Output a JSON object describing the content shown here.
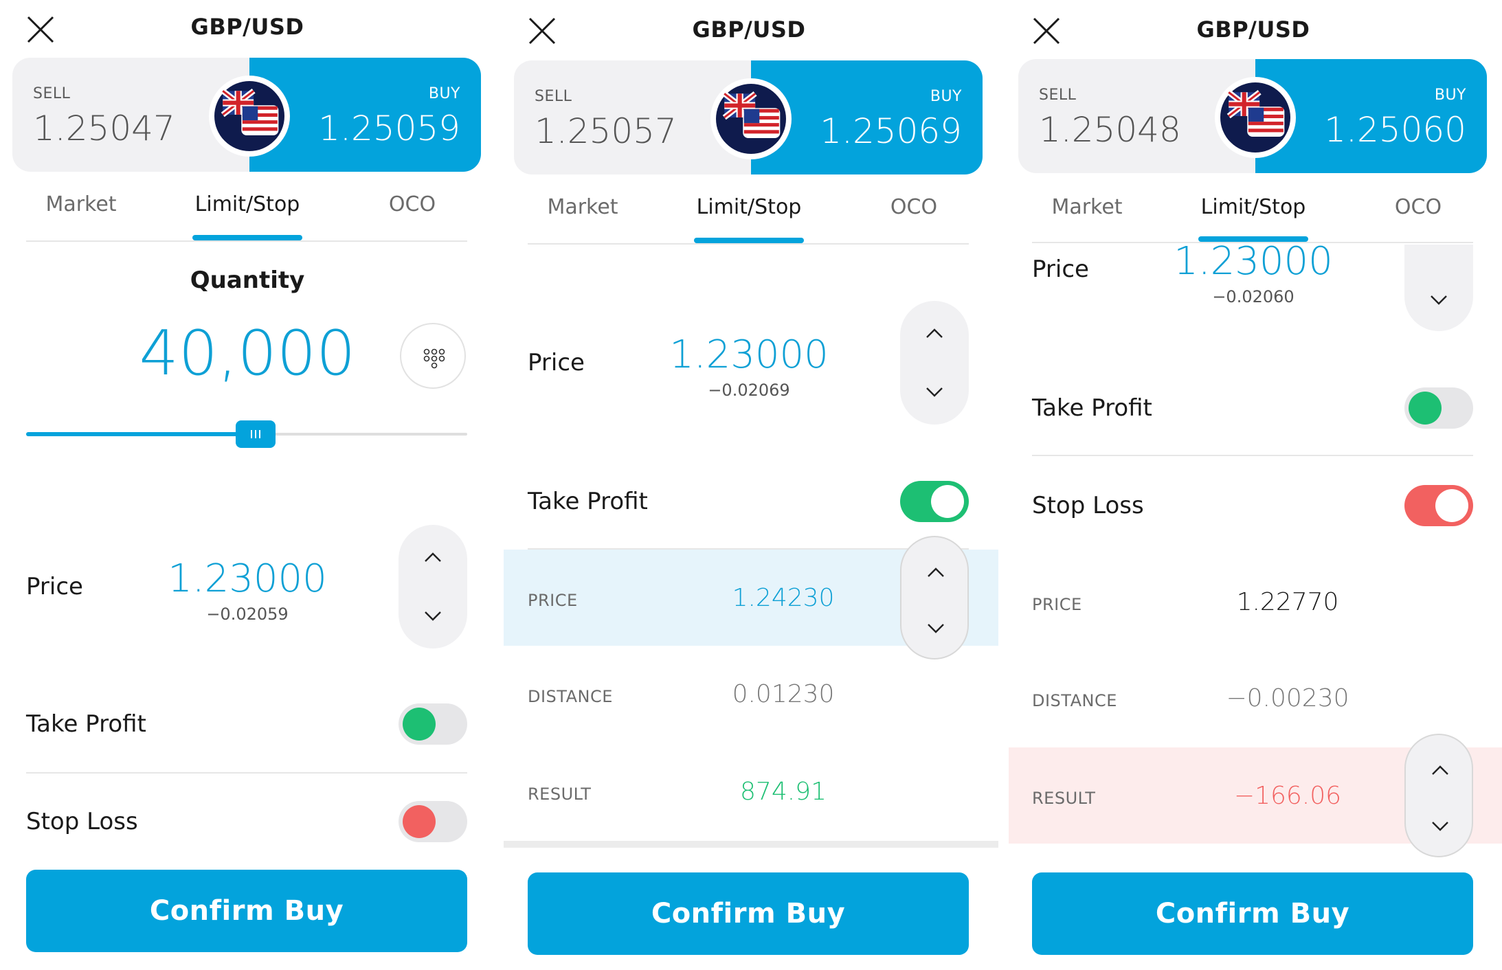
{
  "colors": {
    "accent": "#03a3dc",
    "profit_green": "#1dbf73",
    "loss_red": "#f26160",
    "tint_blue": "#e6f4fb",
    "tint_red": "#fdecec"
  },
  "panels": [
    {
      "title": "GBP/USD",
      "sell": {
        "label": "SELL",
        "price": "1.25047"
      },
      "buy": {
        "label": "BUY",
        "price": "1.25059"
      },
      "tabs": [
        "Market",
        "Limit/Stop",
        "OCO"
      ],
      "active_tab": "Limit/Stop",
      "quantity": {
        "label": "Quantity",
        "value": "40,000",
        "slider_fraction": 0.52
      },
      "price": {
        "label": "Price",
        "value": "1.23000",
        "delta": "−0.02059"
      },
      "take_profit": {
        "label": "Take Profit",
        "enabled": false
      },
      "stop_loss": {
        "label": "Stop Loss",
        "enabled": false
      },
      "confirm": "Confirm Buy"
    },
    {
      "title": "GBP/USD",
      "sell": {
        "label": "SELL",
        "price": "1.25057"
      },
      "buy": {
        "label": "BUY",
        "price": "1.25069"
      },
      "tabs": [
        "Market",
        "Limit/Stop",
        "OCO"
      ],
      "active_tab": "Limit/Stop",
      "price": {
        "label": "Price",
        "value": "1.23000",
        "delta": "−0.02069"
      },
      "take_profit": {
        "label": "Take Profit",
        "enabled": true,
        "rows": {
          "price": {
            "label": "PRICE",
            "value": "1.24230"
          },
          "distance": {
            "label": "DISTANCE",
            "value": "0.01230"
          },
          "result": {
            "label": "RESULT",
            "value": "874.91"
          }
        }
      },
      "confirm": "Confirm Buy"
    },
    {
      "title": "GBP/USD",
      "sell": {
        "label": "SELL",
        "price": "1.25048"
      },
      "buy": {
        "label": "BUY",
        "price": "1.25060"
      },
      "tabs": [
        "Market",
        "Limit/Stop",
        "OCO"
      ],
      "active_tab": "Limit/Stop",
      "price": {
        "label": "Price",
        "value": "1.23000",
        "delta": "−0.02060"
      },
      "take_profit": {
        "label": "Take Profit",
        "enabled": false
      },
      "stop_loss": {
        "label": "Stop Loss",
        "enabled": true,
        "rows": {
          "price": {
            "label": "PRICE",
            "value": "1.22770"
          },
          "distance": {
            "label": "DISTANCE",
            "value": "−0.00230"
          },
          "result": {
            "label": "RESULT",
            "value": "−166.06"
          }
        }
      },
      "confirm": "Confirm Buy"
    }
  ]
}
